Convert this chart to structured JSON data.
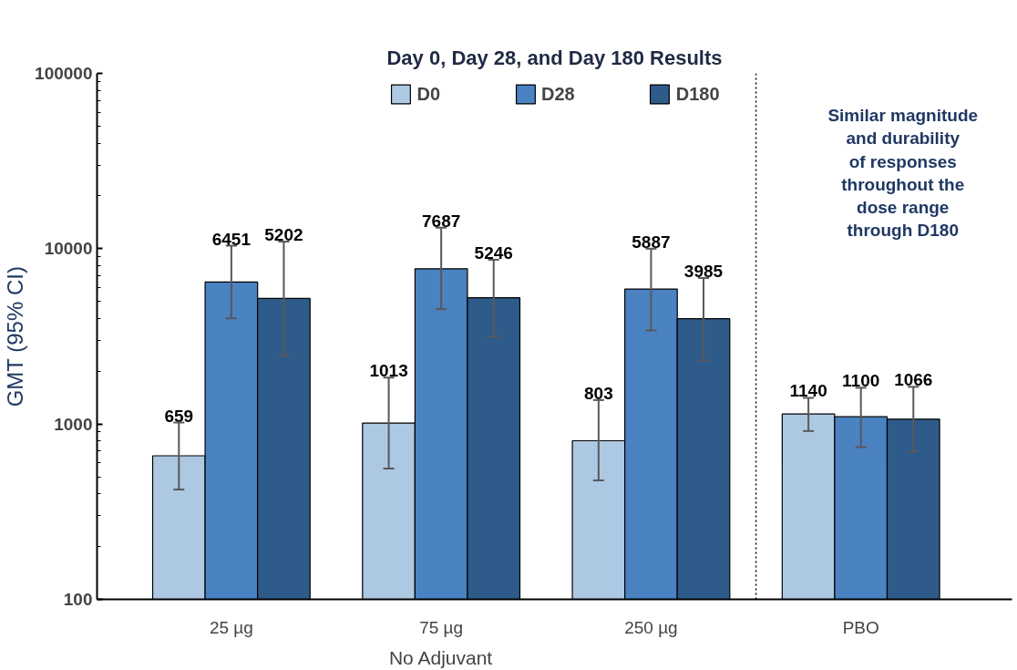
{
  "chart_data": {
    "type": "bar",
    "title": "Day 0, Day 28, and Day 180 Results",
    "ylabel": "GMT (95% CI)",
    "categories": [
      "25 µg",
      "75 µg",
      "250 µg",
      "PBO"
    ],
    "series": [
      {
        "name": "D0",
        "color": "#adc8e3",
        "values": [
          659,
          1013,
          803,
          1140
        ],
        "value_labels": [
          "659",
          "1013",
          "803",
          "1140"
        ],
        "errors": [
          [
            423,
            1020
          ],
          [
            558,
            1840
          ],
          [
            477,
            1370
          ],
          [
            912,
            1410
          ]
        ]
      },
      {
        "name": "D28",
        "color": "#4a82c2",
        "values": [
          6451,
          7687,
          5887,
          1100
        ],
        "value_labels": [
          "6451",
          "7687",
          "5887",
          "1100"
        ],
        "errors": [
          [
            4010,
            10400
          ],
          [
            4520,
            13200
          ],
          [
            3420,
            10000
          ],
          [
            738,
            1610
          ]
        ]
      },
      {
        "name": "D180",
        "color": "#2f5b8a",
        "values": [
          5202,
          5246,
          3985,
          1066
        ],
        "value_labels": [
          "5202",
          "5246",
          "3985",
          "1066"
        ],
        "errors": [
          [
            2460,
            10970
          ],
          [
            3160,
            8650
          ],
          [
            2300,
            6810
          ],
          [
            700,
            1630
          ]
        ]
      }
    ],
    "log": true,
    "ylim": [
      100,
      100000
    ],
    "yticks": [
      100,
      1000,
      10000,
      100000
    ],
    "grid": false,
    "legend": "top",
    "annotations": [
      "No Adjuvant",
      "Similar magnitude\nand durability\nof responses\nthroughout the\ndose range\nthrough D180"
    ]
  }
}
